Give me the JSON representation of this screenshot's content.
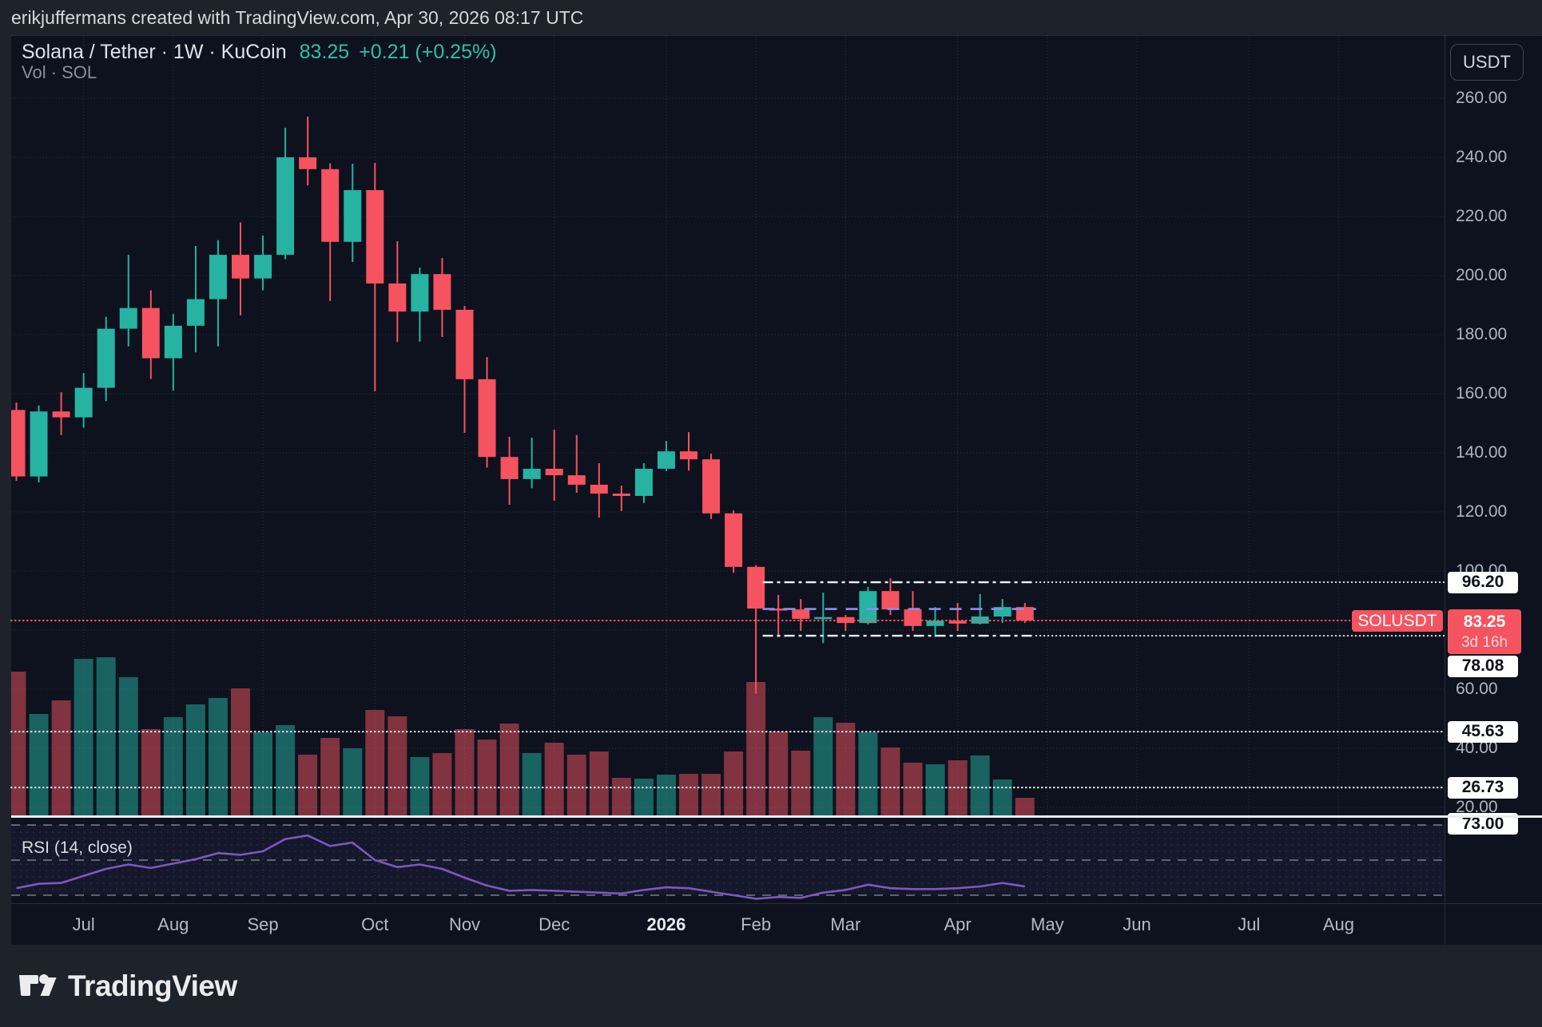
{
  "attribution": "erikjuffermans created with TradingView.com, Apr 30, 2026 08:17 UTC",
  "header": {
    "symbol": "Solana / Tether · 1W · KuCoin",
    "last_price": "83.25",
    "change": "+0.21 (+0.25%)",
    "indicator_line": "Vol · SOL"
  },
  "currency_button": "USDT",
  "current": {
    "symbol_label": "SOLUSDT",
    "price_text": "83.25",
    "countdown": "3d 16h"
  },
  "rsi_pane": {
    "label": "RSI (14, close)",
    "level_label": "73.00",
    "levels": [
      70,
      50,
      30
    ]
  },
  "logo_text": "TradingView",
  "colors": {
    "up": "#26b3a2",
    "down": "#f5535f",
    "rsi_line": "#7e57c2",
    "mid_line": "#8d8ef2",
    "axis_text": "#b2b5be",
    "chart_bg": "#0d121e",
    "frame_bg": "#1e222b"
  },
  "chart_data": {
    "type": "candlestick",
    "symbol": "SOLUSDT",
    "exchange": "KuCoin",
    "interval": "1W",
    "price_axis_ticks": [
      260,
      240,
      220,
      200,
      180,
      160,
      140,
      120,
      100,
      80,
      60,
      40,
      20
    ],
    "hidden_ticks": [
      100,
      80
    ],
    "ylim": [
      15,
      270
    ],
    "months": [
      {
        "label": "Jul",
        "i": 3
      },
      {
        "label": "Aug",
        "i": 7
      },
      {
        "label": "Sep",
        "i": 11
      },
      {
        "label": "Oct",
        "i": 16
      },
      {
        "label": "Nov",
        "i": 20
      },
      {
        "label": "Dec",
        "i": 24
      },
      {
        "label": "2026",
        "i": 29,
        "bold": true
      },
      {
        "label": "Feb",
        "i": 33
      },
      {
        "label": "Mar",
        "i": 37
      },
      {
        "label": "Apr",
        "i": 42
      },
      {
        "label": "May",
        "i": 46
      },
      {
        "label": "Jun",
        "i": 50
      },
      {
        "label": "Jul",
        "i": 55
      },
      {
        "label": "Aug",
        "i": 59
      }
    ],
    "candles_ohlc": [
      [
        154.5,
        157,
        130.5,
        132
      ],
      [
        132,
        156,
        130,
        154
      ],
      [
        154,
        160.5,
        146,
        152
      ],
      [
        152,
        167,
        148.5,
        162
      ],
      [
        162,
        186,
        157.5,
        182
      ],
      [
        182,
        207,
        176,
        189
      ],
      [
        189,
        195,
        165,
        172
      ],
      [
        172,
        187,
        161,
        183
      ],
      [
        183,
        210,
        174,
        192
      ],
      [
        192,
        212,
        176,
        207
      ],
      [
        207,
        218,
        186.5,
        199
      ],
      [
        199,
        213.5,
        195,
        207
      ],
      [
        207,
        250,
        205.5,
        240
      ],
      [
        240,
        253.8,
        230.5,
        236
      ],
      [
        236,
        238,
        191.4,
        211.4
      ],
      [
        211.4,
        237.8,
        204.6,
        228.9
      ],
      [
        228.9,
        238.1,
        160.8,
        197.3
      ],
      [
        197.3,
        211.6,
        177.5,
        187.8
      ],
      [
        187.8,
        202.7,
        177.6,
        200.5
      ],
      [
        200.5,
        205.9,
        179.2,
        188.4
      ],
      [
        188.4,
        189.7,
        146.8,
        164.9
      ],
      [
        164.9,
        172.4,
        135,
        138.6
      ],
      [
        138.6,
        145.4,
        122.4,
        131.1
      ],
      [
        131.1,
        145.1,
        128,
        134.6
      ],
      [
        134.6,
        147.8,
        123.8,
        132.4
      ],
      [
        132.4,
        146,
        126.5,
        129.2
      ],
      [
        129.2,
        136.5,
        118.1,
        126.2
      ],
      [
        126.2,
        128.9,
        120.3,
        125.4
      ],
      [
        125.4,
        136.5,
        123,
        134.6
      ],
      [
        134.6,
        144,
        133.8,
        140.5
      ],
      [
        140.5,
        147,
        134,
        137.8
      ],
      [
        137.8,
        139.7,
        117.6,
        119.5
      ],
      [
        119.5,
        120.5,
        99.4,
        101.4
      ],
      [
        101.4,
        102,
        58.5,
        87.3
      ],
      [
        87.3,
        91.9,
        77.6,
        87
      ],
      [
        87,
        90.5,
        79.7,
        83.8
      ],
      [
        83.8,
        92.7,
        75.6,
        84.4
      ],
      [
        84.4,
        85.1,
        79.7,
        82.4
      ],
      [
        82.4,
        94.6,
        81.9,
        93.2
      ],
      [
        93.2,
        97.5,
        85.1,
        87
      ],
      [
        87,
        93.2,
        79.7,
        81.4
      ],
      [
        81.4,
        87.8,
        77.6,
        83.2
      ],
      [
        83.2,
        89.2,
        79.7,
        82.2
      ],
      [
        82.2,
        92.2,
        81.9,
        84.6
      ],
      [
        84.6,
        90.5,
        82.4,
        87.8
      ],
      [
        87.8,
        89.2,
        82.4,
        83.25
      ]
    ],
    "volume_rel": [
      180,
      127,
      144,
      196,
      198,
      173,
      108,
      123,
      139,
      147,
      159,
      104,
      113,
      76,
      97,
      84,
      132,
      124,
      73,
      78,
      108,
      95,
      115,
      78,
      91,
      76,
      80,
      47,
      46,
      51,
      52,
      52,
      80,
      167,
      105,
      81,
      123,
      116,
      104,
      85,
      66,
      64,
      69,
      75,
      45,
      22
    ],
    "rsi": [
      34,
      36.5,
      37,
      41,
      45,
      47.5,
      45.5,
      48,
      50.5,
      54,
      53,
      55,
      62,
      64,
      58,
      60,
      50,
      46,
      47.5,
      45,
      40,
      35.5,
      32.5,
      33,
      32.5,
      32,
      31.5,
      31,
      33,
      34.5,
      34,
      32,
      30,
      28,
      29,
      28.5,
      31.5,
      33,
      36,
      34,
      33.5,
      33.5,
      34,
      35,
      37,
      35
    ],
    "price_line": {
      "value": 83.25
    },
    "horizontal_lines": [
      {
        "value": 96.2,
        "style": "dashdot",
        "labeled": true
      },
      {
        "value": 78.08,
        "style": "dashdot",
        "labeled": true
      },
      {
        "value": 87.14,
        "style": "middash",
        "labeled": false
      },
      {
        "value": 45.63,
        "style": "dotted",
        "labeled": true
      },
      {
        "value": 26.73,
        "style": "dotted",
        "labeled": true
      }
    ],
    "drawing_span": {
      "x_start_index": 33.3,
      "x_end_index": 45.5
    }
  }
}
